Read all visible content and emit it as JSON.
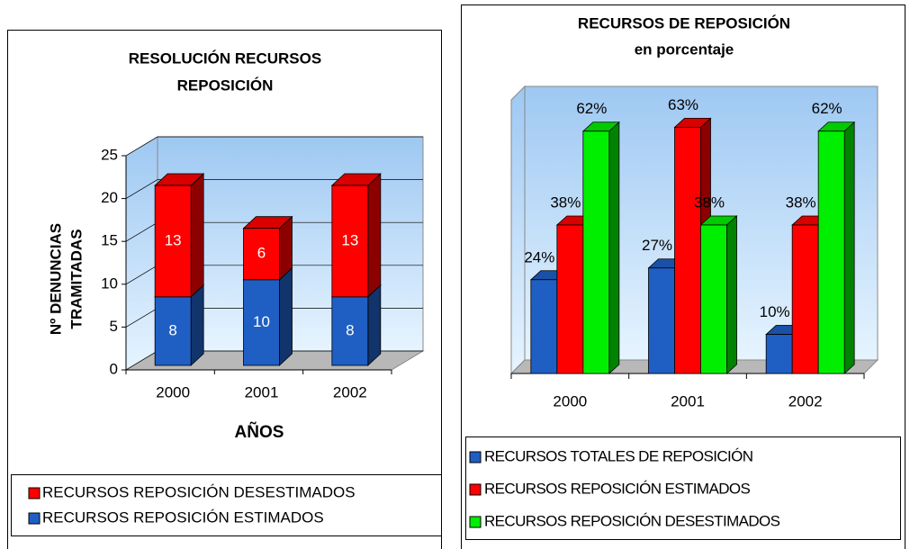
{
  "chart_data": [
    {
      "type": "stacked_bar",
      "title": [
        "RESOLUCIÓN RECURSOS",
        "REPOSICIÓN"
      ],
      "ylabel": [
        "Nº DENUNCIAS",
        "TRAMITADAS"
      ],
      "xlabel": "AÑOS",
      "categories": [
        "2000",
        "2001",
        "2002"
      ],
      "series": [
        {
          "name": "RECURSOS REPOSICIÓN ESTIMADOS",
          "color": "#1f5fc4",
          "values": [
            8,
            10,
            8
          ]
        },
        {
          "name": "RECURSOS REPOSICIÓN DESESTIMADOS",
          "color": "#ff0000",
          "values": [
            13,
            6,
            13
          ]
        }
      ],
      "ylim": [
        0,
        25
      ],
      "yticks": [
        0,
        5,
        10,
        15,
        20,
        25
      ],
      "grid": true
    },
    {
      "type": "bar",
      "title": [
        "RECURSOS DE REPOSICIÓN"
      ],
      "subtitle": "en porcentaje",
      "categories": [
        "2000",
        "2001",
        "2002"
      ],
      "series": [
        {
          "name": "RECURSOS TOTALES DE REPOSICIÓN",
          "color": "#1f5fc4",
          "values": [
            24,
            27,
            10
          ],
          "value_labels": [
            "24%",
            "27%",
            "10%"
          ]
        },
        {
          "name": "RECURSOS REPOSICIÓN ESTIMADOS",
          "color": "#ff0000",
          "values": [
            38,
            63,
            38
          ],
          "value_labels": [
            "38%",
            "63%",
            "38%"
          ]
        },
        {
          "name": "RECURSOS REPOSICIÓN DESESTIMADOS",
          "color": "#00ee00",
          "values": [
            62,
            38,
            62
          ],
          "value_labels": [
            "62%",
            "38%",
            "62%"
          ]
        }
      ],
      "ylim": [
        0,
        70
      ]
    }
  ]
}
